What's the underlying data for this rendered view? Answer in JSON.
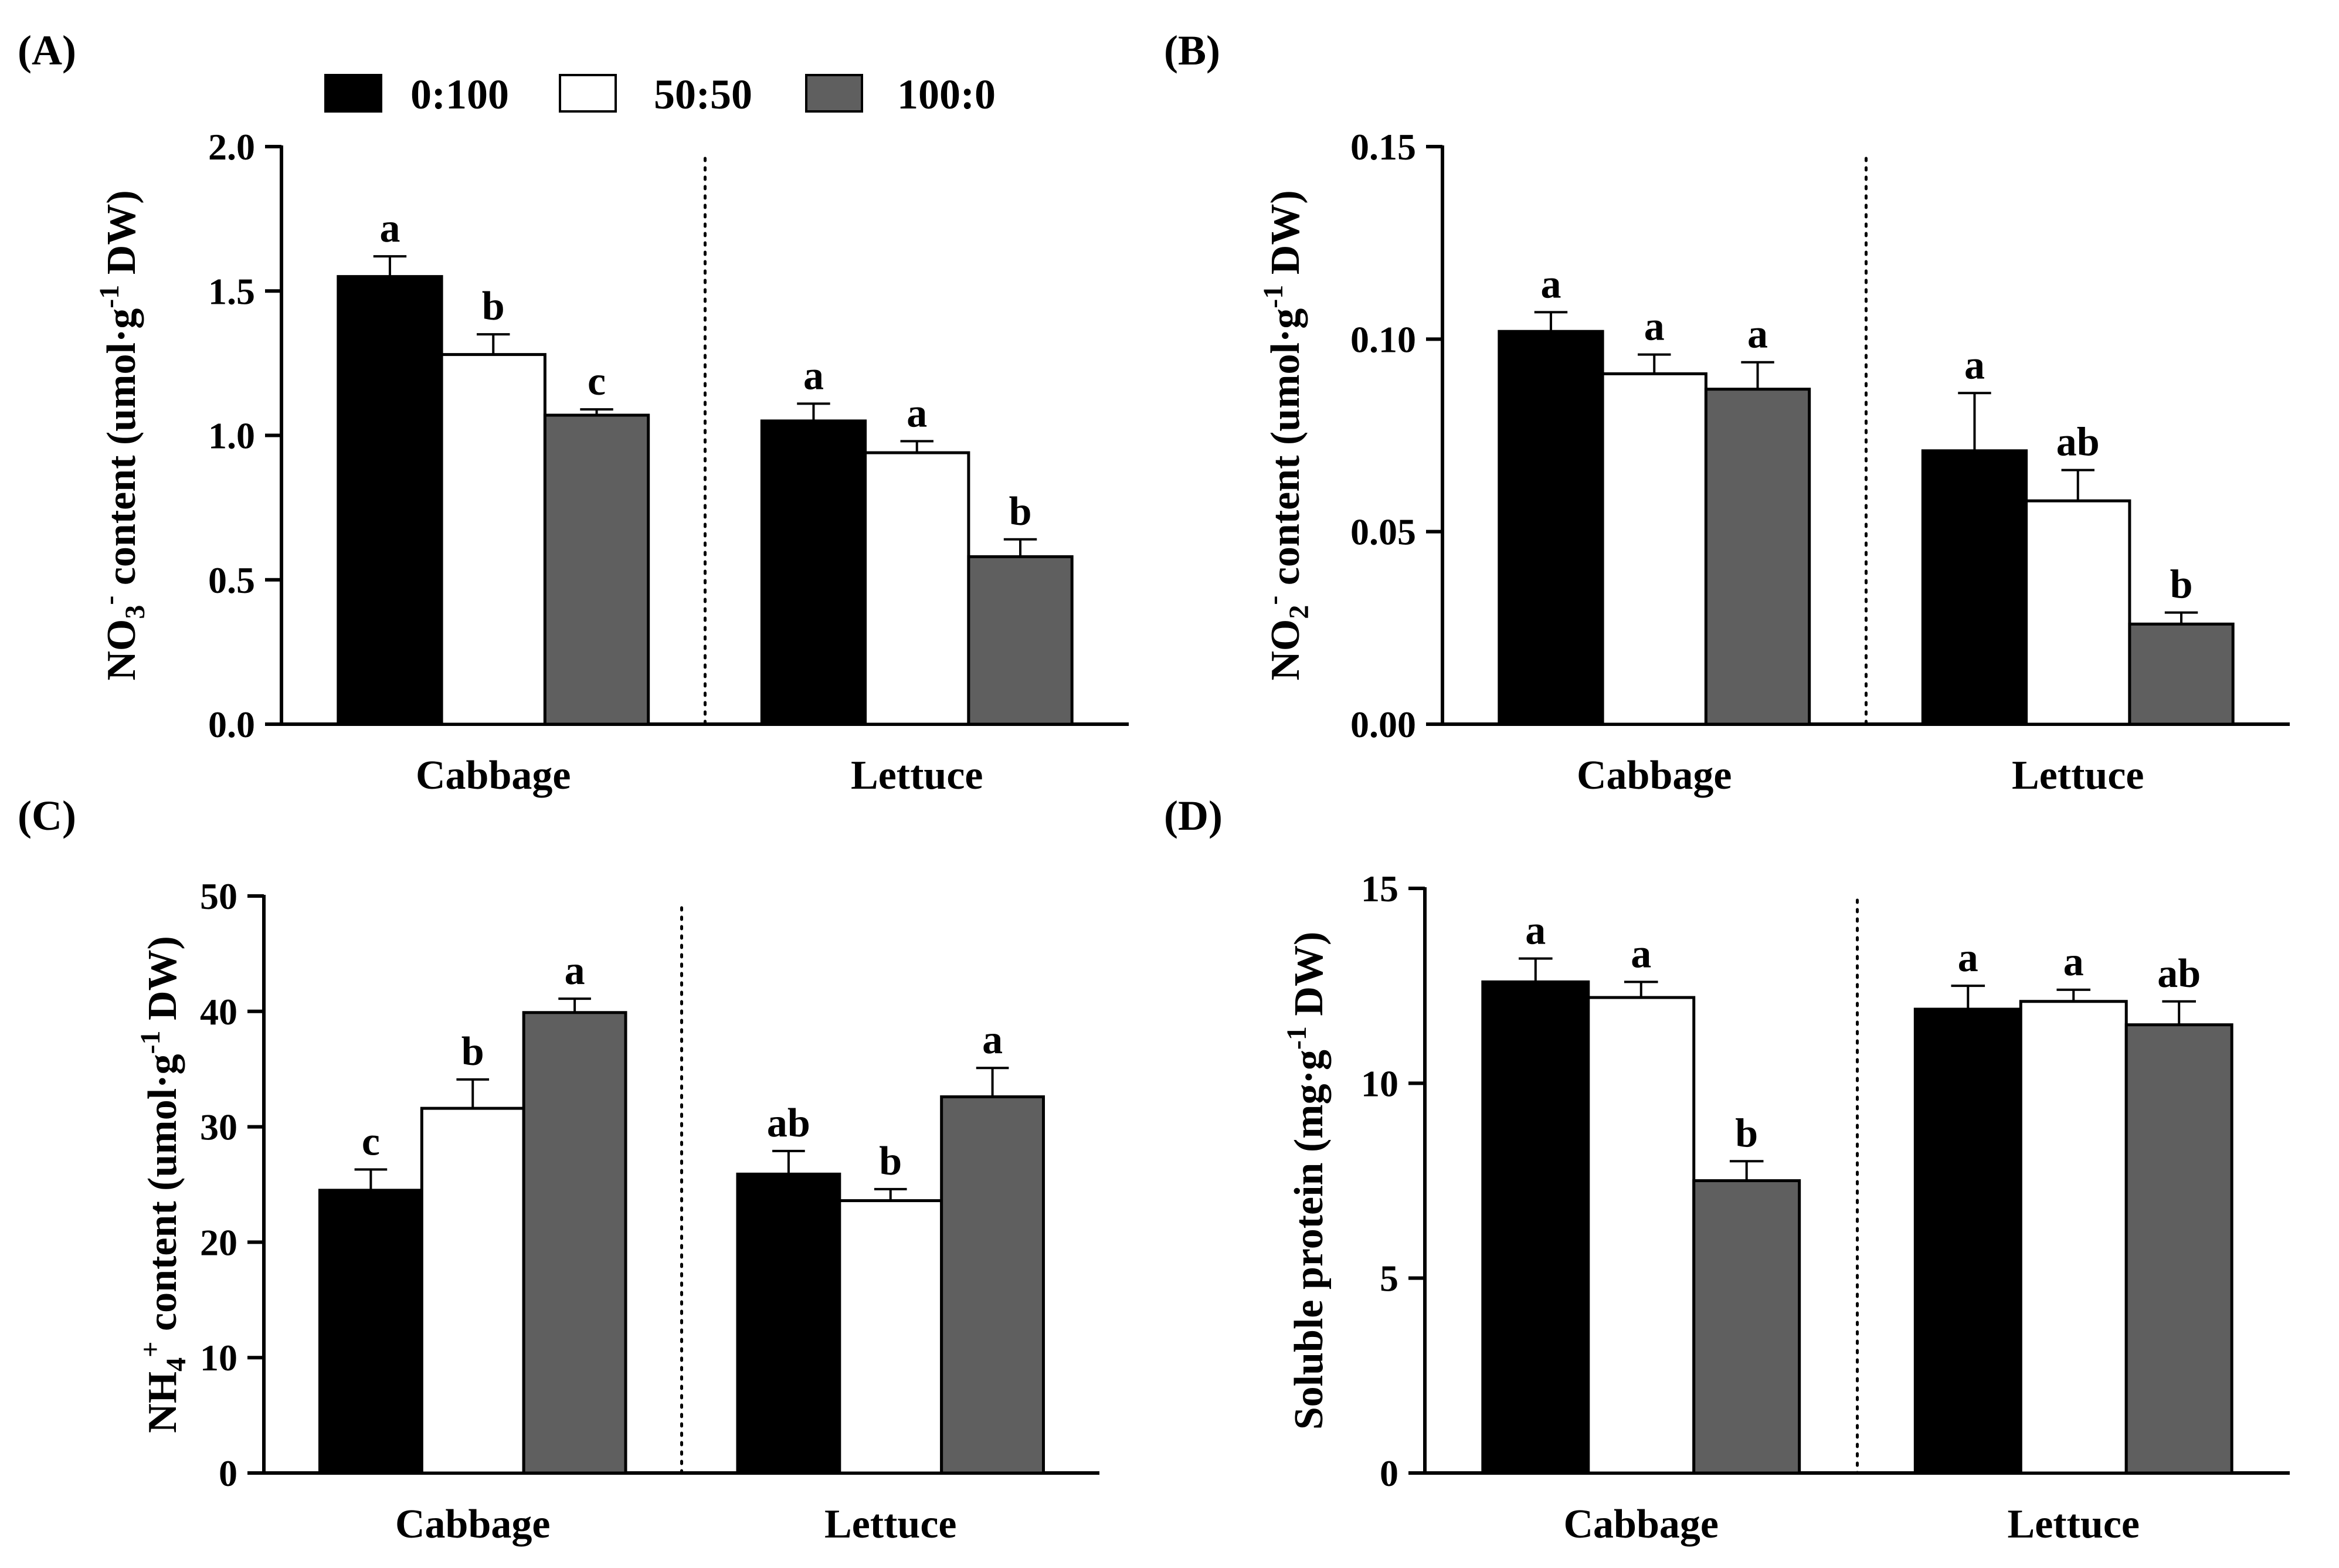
{
  "legend": [
    {
      "label": "0:100",
      "color": "#000000"
    },
    {
      "label": "50:50",
      "color": "#ffffff"
    },
    {
      "label": "100:0",
      "color": "#5f5f5f"
    }
  ],
  "chart_data": [
    {
      "type": "bar",
      "panel": "(A)",
      "ylabel": {
        "pre": "NO",
        "sub": "3",
        "sup": "-",
        "mid": " content (umol·g",
        "sup2": "-1",
        "post": " DW)"
      },
      "ylim": [
        0,
        2.0
      ],
      "ticks": [
        0,
        0.5,
        1.0,
        1.5,
        2.0
      ],
      "tick_labels": [
        "0.0",
        "0.5",
        "1.0",
        "1.5",
        "2.0"
      ],
      "categories": [
        "Cabbage",
        "Lettuce"
      ],
      "series": [
        {
          "name": "0:100",
          "values": [
            1.55,
            1.05
          ],
          "errors": [
            0.07,
            0.06
          ],
          "letters": [
            "a",
            "a"
          ]
        },
        {
          "name": "50:50",
          "values": [
            1.28,
            0.94
          ],
          "errors": [
            0.07,
            0.04
          ],
          "letters": [
            "b",
            "a"
          ]
        },
        {
          "name": "100:0",
          "values": [
            1.07,
            0.58
          ],
          "errors": [
            0.02,
            0.06
          ],
          "letters": [
            "c",
            "b"
          ]
        }
      ]
    },
    {
      "type": "bar",
      "panel": "(B)",
      "ylabel": {
        "pre": "NO",
        "sub": "2",
        "sup": "-",
        "mid": " content (umol·g",
        "sup2": "-1",
        "post": " DW)"
      },
      "ylim": [
        0,
        0.15
      ],
      "ticks": [
        0,
        0.05,
        0.1,
        0.15
      ],
      "tick_labels": [
        "0.00",
        "0.05",
        "0.10",
        "0.15"
      ],
      "categories": [
        "Cabbage",
        "Lettuce"
      ],
      "series": [
        {
          "name": "0:100",
          "values": [
            0.102,
            0.071
          ],
          "errors": [
            0.005,
            0.015
          ],
          "letters": [
            "a",
            "a"
          ]
        },
        {
          "name": "50:50",
          "values": [
            0.091,
            0.058
          ],
          "errors": [
            0.005,
            0.008
          ],
          "letters": [
            "a",
            "ab"
          ]
        },
        {
          "name": "100:0",
          "values": [
            0.087,
            0.026
          ],
          "errors": [
            0.007,
            0.003
          ],
          "letters": [
            "a",
            "b"
          ]
        }
      ]
    },
    {
      "type": "bar",
      "panel": "(C)",
      "ylabel": {
        "pre": "NH",
        "sub": "4",
        "sup": "+",
        "mid": " content (umol·g",
        "sup2": "-1",
        "post": " DW)"
      },
      "ylim": [
        0,
        50
      ],
      "ticks": [
        0,
        10,
        20,
        30,
        40,
        50
      ],
      "tick_labels": [
        "0",
        "10",
        "20",
        "30",
        "40",
        "50"
      ],
      "categories": [
        "Cabbage",
        "Lettuce"
      ],
      "series": [
        {
          "name": "0:100",
          "values": [
            24.5,
            25.9
          ],
          "errors": [
            1.8,
            2.0
          ],
          "letters": [
            "c",
            "ab"
          ]
        },
        {
          "name": "50:50",
          "values": [
            31.6,
            23.6
          ],
          "errors": [
            2.5,
            1.0
          ],
          "letters": [
            "b",
            "b"
          ]
        },
        {
          "name": "100:0",
          "values": [
            39.9,
            32.6
          ],
          "errors": [
            1.2,
            2.5
          ],
          "letters": [
            "a",
            "a"
          ]
        }
      ]
    },
    {
      "type": "bar",
      "panel": "(D)",
      "ylabel": {
        "pre": "Soluble protein (mg·g",
        "sub": "",
        "sup": "-1",
        "mid": " DW)",
        "sup2": "",
        "post": ""
      },
      "ylim": [
        0,
        15
      ],
      "ticks": [
        0,
        5,
        10,
        15
      ],
      "tick_labels": [
        "0",
        "5",
        "10",
        "15"
      ],
      "categories": [
        "Cabbage",
        "Lettuce"
      ],
      "series": [
        {
          "name": "0:100",
          "values": [
            12.6,
            11.9
          ],
          "errors": [
            0.6,
            0.6
          ],
          "letters": [
            "a",
            "a"
          ]
        },
        {
          "name": "50:50",
          "values": [
            12.2,
            12.1
          ],
          "errors": [
            0.4,
            0.3
          ],
          "letters": [
            "a",
            "a"
          ]
        },
        {
          "name": "100:0",
          "values": [
            7.5,
            11.5
          ],
          "errors": [
            0.5,
            0.6
          ],
          "letters": [
            "b",
            "ab"
          ]
        }
      ]
    }
  ]
}
